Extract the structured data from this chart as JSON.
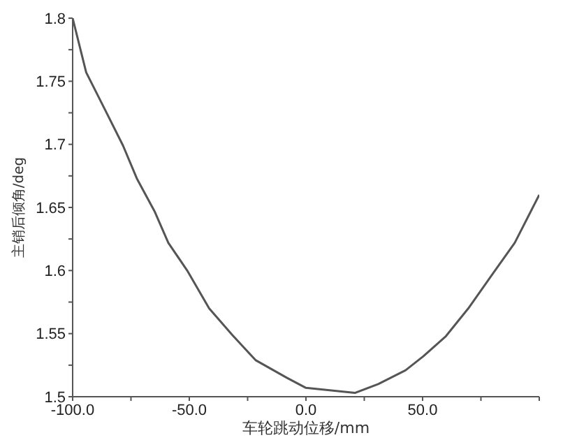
{
  "chart_data": {
    "type": "line",
    "xlabel": "车轮跳动位移/mm",
    "ylabel": "主销后倾角/deg",
    "x": [
      -100,
      -94.2,
      -86,
      -78.4,
      -72.5,
      -64.9,
      -59,
      -50.9,
      -41.5,
      -31.6,
      -21.6,
      -8.2,
      0,
      21,
      31,
      42.7,
      50.3,
      60,
      69.6,
      79.5,
      89.5,
      100
    ],
    "series": [
      {
        "color": "#555555",
        "values": [
          1.8,
          1.757,
          1.727,
          1.699,
          1.673,
          1.647,
          1.622,
          1.6,
          1.57,
          1.549,
          1.529,
          1.515,
          1.507,
          1.503,
          1.51,
          1.521,
          1.532,
          1.548,
          1.57,
          1.596,
          1.622,
          1.66
        ]
      }
    ],
    "xlim": [
      -100,
      100
    ],
    "xticks": [
      {
        "value": -100,
        "label": "-100.0"
      },
      {
        "value": -75,
        "label": null
      },
      {
        "value": -50,
        "label": "-50.0"
      },
      {
        "value": -25,
        "label": null
      },
      {
        "value": 0,
        "label": "0.0"
      },
      {
        "value": 25,
        "label": null
      },
      {
        "value": 50,
        "label": "50.0"
      },
      {
        "value": 75,
        "label": null
      },
      {
        "value": 100,
        "label": null
      }
    ],
    "ylim": [
      1.5,
      1.8
    ],
    "yticks": [
      1.5,
      {
        "value": 1.525,
        "label": null
      },
      1.55,
      {
        "value": 1.575,
        "label": null
      },
      1.6,
      {
        "value": 1.625,
        "label": null
      },
      1.65,
      {
        "value": 1.675,
        "label": null
      },
      1.7,
      {
        "value": 1.725,
        "label": null
      },
      1.75,
      {
        "value": 1.775,
        "label": null
      },
      1.8
    ],
    "marker": "none",
    "line_style": "solid"
  }
}
